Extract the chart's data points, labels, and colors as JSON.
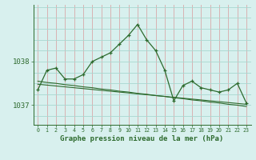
{
  "x": [
    0,
    1,
    2,
    3,
    4,
    5,
    6,
    7,
    8,
    9,
    10,
    11,
    12,
    13,
    14,
    15,
    16,
    17,
    18,
    19,
    20,
    21,
    22,
    23
  ],
  "y_main": [
    1037.35,
    1037.8,
    1037.85,
    1037.6,
    1037.6,
    1037.7,
    1038.0,
    1038.1,
    1038.2,
    1038.4,
    1038.6,
    1038.85,
    1038.5,
    1038.25,
    1037.8,
    1037.1,
    1037.45,
    1037.55,
    1037.4,
    1037.35,
    1037.3,
    1037.35,
    1037.5,
    1037.05
  ],
  "y_smooth1": [
    1037.55,
    1037.52,
    1037.5,
    1037.47,
    1037.45,
    1037.42,
    1037.4,
    1037.37,
    1037.35,
    1037.32,
    1037.3,
    1037.27,
    1037.25,
    1037.22,
    1037.2,
    1037.17,
    1037.15,
    1037.12,
    1037.1,
    1037.07,
    1037.05,
    1037.02,
    1037.0,
    1036.97
  ],
  "y_smooth2": [
    1037.48,
    1037.46,
    1037.44,
    1037.42,
    1037.4,
    1037.38,
    1037.36,
    1037.34,
    1037.32,
    1037.3,
    1037.28,
    1037.26,
    1037.24,
    1037.22,
    1037.2,
    1037.18,
    1037.16,
    1037.14,
    1037.12,
    1037.1,
    1037.08,
    1037.06,
    1037.04,
    1037.02
  ],
  "line_color": "#2d6a2d",
  "bg_color": "#d8f0ee",
  "grid_v_color": "#d8a8a8",
  "grid_h_color": "#a8d8d0",
  "xlabel": "Graphe pression niveau de la mer (hPa)",
  "ytick_labels": [
    "1037",
    "1038"
  ],
  "ytick_vals": [
    1037.0,
    1038.0
  ],
  "ylim": [
    1036.55,
    1039.3
  ],
  "xlim": [
    -0.5,
    23.5
  ]
}
